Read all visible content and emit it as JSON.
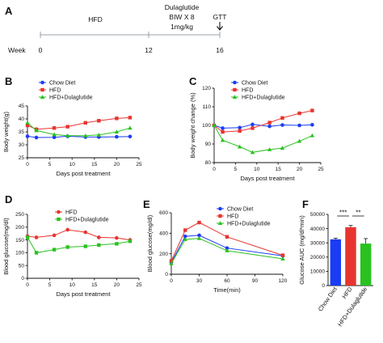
{
  "timeline": {
    "panel_label": "A",
    "row_label": "Week",
    "ticks": [
      "0",
      "12",
      "16"
    ],
    "phase_label": "HFD",
    "treatment_label_lines": [
      "Dulaglutide",
      "BIW X 8",
      "1mg/kg"
    ],
    "end_label": "GTT"
  },
  "colors": {
    "chow": "#1a3cf5",
    "hfd": "#e8342f",
    "hfd_dula": "#29c21f",
    "axis": "#111111"
  },
  "chart_data": [
    {
      "panel": "B",
      "type": "line",
      "xlabel": "Days post treatment",
      "ylabel": "Body weight(g)",
      "xlim": [
        0,
        25
      ],
      "ylim": [
        25,
        45
      ],
      "xticks": [
        0,
        5,
        10,
        15,
        20,
        25
      ],
      "yticks": [
        25,
        30,
        35,
        40,
        45
      ],
      "legend": "upper-left",
      "series": [
        {
          "name": "Chow Diet",
          "color_key": "chow",
          "marker": "circle",
          "x": [
            0,
            2,
            6,
            9,
            13,
            16,
            20,
            23
          ],
          "y": [
            33.3,
            32.8,
            32.9,
            33.3,
            33.0,
            33.0,
            33.1,
            33.2
          ]
        },
        {
          "name": "HFD",
          "color_key": "hfd",
          "marker": "square",
          "x": [
            0,
            2,
            6,
            9,
            13,
            16,
            20,
            23
          ],
          "y": [
            37.5,
            36.0,
            36.5,
            37.0,
            38.5,
            39.3,
            40.2,
            40.5
          ]
        },
        {
          "name": "HFD+Dulaglutide",
          "color_key": "hfd_dula",
          "marker": "triangle",
          "x": [
            0,
            2,
            6,
            9,
            13,
            16,
            20,
            23
          ],
          "y": [
            38.5,
            35.5,
            34.0,
            33.5,
            33.5,
            33.8,
            35.0,
            36.5
          ]
        }
      ]
    },
    {
      "panel": "C",
      "type": "line",
      "xlabel": "Days post treatment",
      "ylabel": "Body weight change (%)",
      "xlim": [
        0,
        25
      ],
      "ylim": [
        80,
        120
      ],
      "xticks": [
        0,
        5,
        10,
        15,
        20,
        25
      ],
      "yticks": [
        80,
        90,
        100,
        110,
        120
      ],
      "legend": "upper-left",
      "series": [
        {
          "name": "Chow Diet",
          "color_key": "chow",
          "marker": "circle",
          "x": [
            0,
            2,
            6,
            9,
            13,
            16,
            20,
            23
          ],
          "y": [
            100,
            98.5,
            98.8,
            100.5,
            99.5,
            100.2,
            100.0,
            100.3
          ]
        },
        {
          "name": "HFD",
          "color_key": "hfd",
          "marker": "square",
          "x": [
            0,
            2,
            6,
            9,
            13,
            16,
            20,
            23
          ],
          "y": [
            100,
            96.5,
            97.0,
            98.5,
            101.5,
            104.0,
            106.5,
            108.0
          ]
        },
        {
          "name": "HFD+Dulaglutide",
          "color_key": "hfd_dula",
          "marker": "triangle",
          "x": [
            0,
            2,
            6,
            9,
            13,
            16,
            20,
            23
          ],
          "y": [
            100,
            92.0,
            88.5,
            85.5,
            87.0,
            87.8,
            91.5,
            94.5
          ]
        }
      ]
    },
    {
      "panel": "D",
      "type": "line",
      "xlabel": "Days post treatment",
      "ylabel": "Blood glucose(mg/dl)",
      "xlim": [
        0,
        25
      ],
      "ylim": [
        0,
        250
      ],
      "xticks": [
        0,
        5,
        10,
        15,
        20,
        25
      ],
      "yticks": [
        0,
        50,
        100,
        150,
        200,
        250
      ],
      "legend": "upper-left",
      "series": [
        {
          "name": "HFD",
          "color_key": "hfd",
          "marker": "circle",
          "x": [
            0,
            2,
            6,
            9,
            13,
            16,
            20,
            23
          ],
          "y": [
            165,
            160,
            168,
            190,
            180,
            160,
            158,
            150
          ]
        },
        {
          "name": "HFD+Dulaglutide",
          "color_key": "hfd_dula",
          "marker": "square",
          "x": [
            0,
            2,
            6,
            9,
            13,
            16,
            20,
            23
          ],
          "y": [
            160,
            100,
            112,
            122,
            125,
            130,
            135,
            145
          ]
        }
      ]
    },
    {
      "panel": "E",
      "type": "line",
      "xlabel": "Time(min)",
      "ylabel": "Blood glucose(mg/dl)",
      "xlim": [
        0,
        120
      ],
      "ylim": [
        0,
        600
      ],
      "xticks": [
        0,
        30,
        60,
        90,
        120
      ],
      "yticks": [
        0,
        200,
        400,
        600
      ],
      "legend": "upper-right",
      "series": [
        {
          "name": "Chow Diet",
          "color_key": "chow",
          "marker": "circle",
          "x": [
            0,
            15,
            30,
            60,
            120
          ],
          "y": [
            115,
            370,
            380,
            255,
            180
          ]
        },
        {
          "name": "HFD",
          "color_key": "hfd",
          "marker": "square",
          "x": [
            0,
            15,
            30,
            60,
            120
          ],
          "y": [
            130,
            430,
            505,
            365,
            185
          ]
        },
        {
          "name": "HFD+Dulaglutide",
          "color_key": "hfd_dula",
          "marker": "triangle",
          "x": [
            0,
            15,
            30,
            60,
            120
          ],
          "y": [
            105,
            340,
            350,
            230,
            150
          ]
        }
      ]
    },
    {
      "panel": "F",
      "type": "bar",
      "ylabel": "Glucose AUC (mg/dl*min)",
      "ylim": [
        0,
        50000
      ],
      "yticks": [
        0,
        10000,
        20000,
        30000,
        40000,
        50000
      ],
      "categories": [
        "Chow Diet",
        "HFD",
        "HFD+Dulaglutide"
      ],
      "color_keys": [
        "chow",
        "hfd",
        "hfd_dula"
      ],
      "values": [
        32500,
        41000,
        29500
      ],
      "errors": [
        700,
        1200,
        3500
      ],
      "significance": [
        {
          "from": 0,
          "to": 1,
          "label": "***"
        },
        {
          "from": 1,
          "to": 2,
          "label": "**"
        }
      ]
    }
  ]
}
